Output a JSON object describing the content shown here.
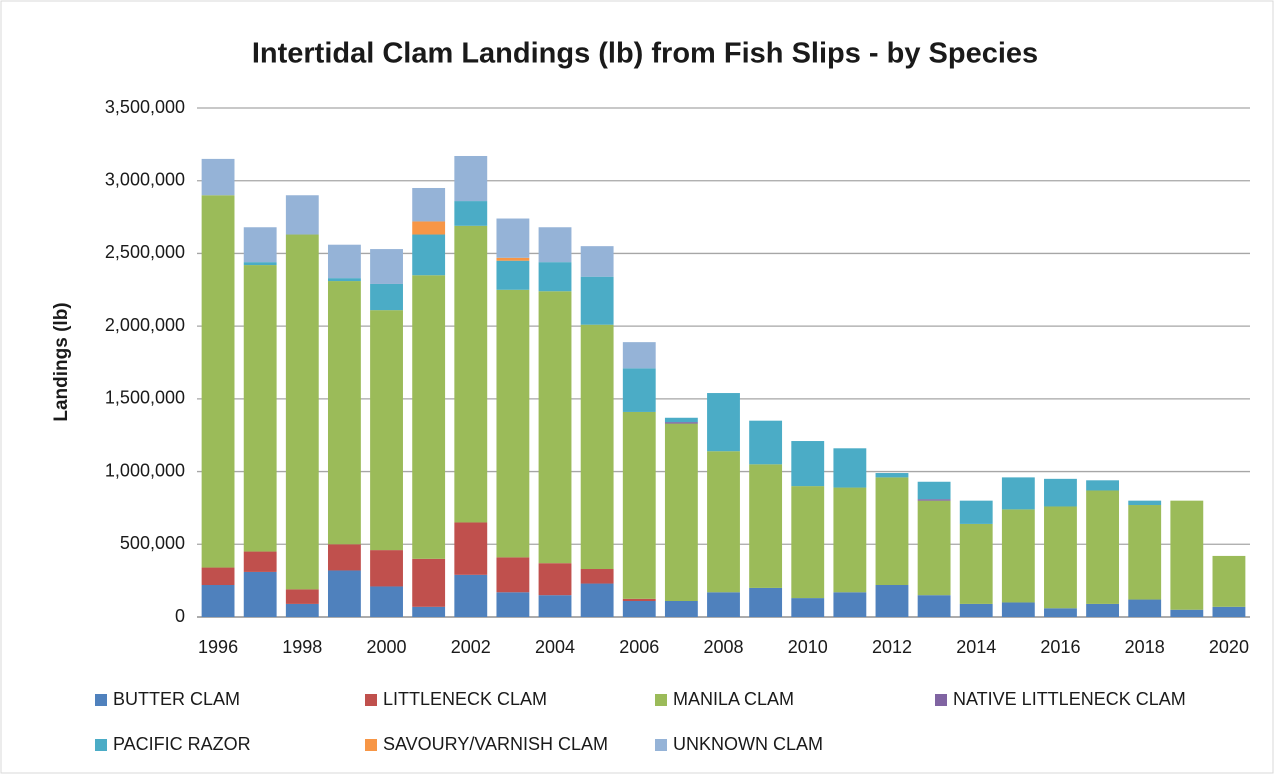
{
  "chart_data": {
    "type": "stacked_bar",
    "title": "Intertidal Clam Landings (lb) from Fish Slips - by Species",
    "y_label": "Landings (lb)",
    "categories": [
      "1996",
      null,
      "1998",
      null,
      "2000",
      null,
      "2002",
      null,
      "2004",
      null,
      "2006",
      null,
      "2008",
      null,
      "2010",
      null,
      "2012",
      null,
      "2014",
      null,
      "2016",
      null,
      "2018",
      null,
      "2020"
    ],
    "series": [
      {
        "name": "BUTTER CLAM",
        "color": "#4f81bd",
        "values": [
          220000,
          310000,
          90000,
          320000,
          210000,
          70000,
          290000,
          170000,
          150000,
          230000,
          110000,
          110000,
          170000,
          200000,
          130000,
          170000,
          220000,
          150000,
          90000,
          100000,
          60000,
          90000,
          120000,
          50000,
          70000
        ]
      },
      {
        "name": "LITTLENECK CLAM",
        "color": "#c0504d",
        "values": [
          120000,
          140000,
          100000,
          180000,
          250000,
          330000,
          360000,
          240000,
          220000,
          100000,
          15000,
          0,
          0,
          0,
          0,
          0,
          0,
          0,
          0,
          0,
          0,
          0,
          0,
          0,
          0
        ]
      },
      {
        "name": "MANILA CLAM",
        "color": "#9bbb59",
        "values": [
          2560000,
          1970000,
          2440000,
          1810000,
          1650000,
          1950000,
          2040000,
          1840000,
          1870000,
          1680000,
          1285000,
          1220000,
          970000,
          850000,
          770000,
          720000,
          740000,
          650000,
          550000,
          640000,
          700000,
          780000,
          650000,
          750000,
          350000
        ]
      },
      {
        "name": "NATIVE LITTLENECK CLAM",
        "color": "#8064a2",
        "values": [
          0,
          0,
          0,
          0,
          0,
          0,
          0,
          0,
          0,
          0,
          0,
          10000,
          0,
          0,
          0,
          0,
          0,
          10000,
          0,
          0,
          0,
          0,
          0,
          0,
          0
        ]
      },
      {
        "name": "PACIFIC RAZOR",
        "color": "#4bacc6",
        "values": [
          0,
          20000,
          0,
          20000,
          180000,
          280000,
          170000,
          200000,
          200000,
          330000,
          300000,
          30000,
          400000,
          300000,
          310000,
          270000,
          30000,
          120000,
          160000,
          220000,
          190000,
          70000,
          30000,
          0,
          0
        ]
      },
      {
        "name": "SAVOURY/VARNISH CLAM",
        "color": "#f79646",
        "values": [
          0,
          0,
          0,
          0,
          0,
          90000,
          0,
          20000,
          0,
          0,
          0,
          0,
          0,
          0,
          0,
          0,
          0,
          0,
          0,
          0,
          0,
          0,
          0,
          0,
          0
        ]
      },
      {
        "name": "UNKNOWN CLAM",
        "color": "#95b3d7",
        "values": [
          250000,
          240000,
          270000,
          230000,
          240000,
          230000,
          310000,
          270000,
          240000,
          210000,
          180000,
          0,
          0,
          0,
          0,
          0,
          0,
          0,
          0,
          0,
          0,
          0,
          0,
          0,
          0
        ]
      }
    ],
    "ylim": [
      0,
      3500000
    ],
    "yticks": [
      0,
      {
        "value": 500000,
        "label": "500,000"
      },
      {
        "value": 1000000,
        "label": "1,000,000"
      },
      {
        "value": 1500000,
        "label": "1,500,000"
      },
      {
        "value": 2000000,
        "label": "2,000,000"
      },
      {
        "value": 2500000,
        "label": "2,500,000"
      },
      {
        "value": 3000000,
        "label": "3,000,000"
      },
      {
        "value": 3500000,
        "label": "3,500,000"
      }
    ],
    "grid": true,
    "legend": "bottom"
  }
}
